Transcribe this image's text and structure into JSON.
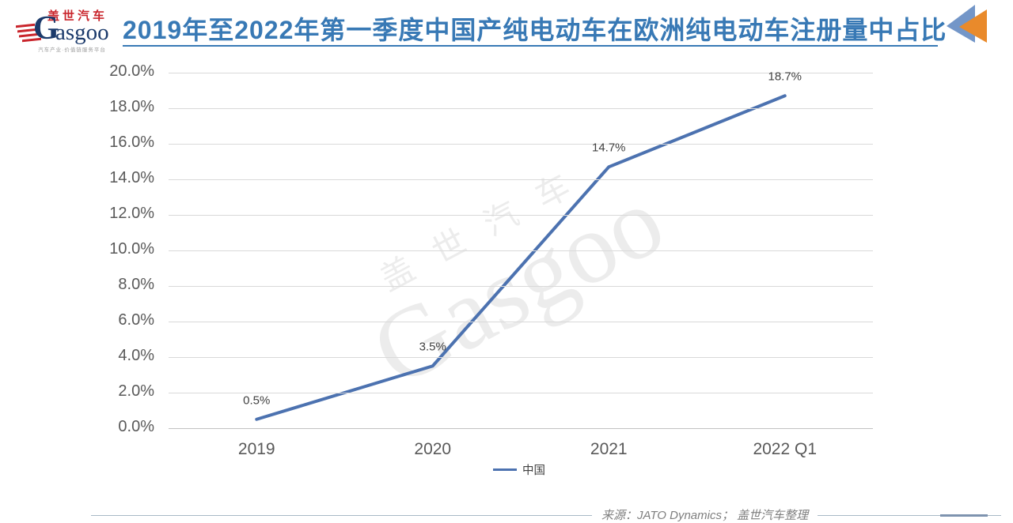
{
  "header": {
    "logo": {
      "brand_cn": "盖世汽车",
      "brand_en_g": "G",
      "brand_en_rest": "asgoo",
      "tagline": "汽车产业·价值链服务平台",
      "red": "#C9252C",
      "navy": "#1B3A6B"
    },
    "title": "2019年至2022年第一季度中国产纯电动车在欧洲纯电动车注册量中占比",
    "title_color": "#3879B5",
    "corner_icon": {
      "blue": "#7396C8",
      "orange": "#E98A2B"
    }
  },
  "chart_data": {
    "type": "line",
    "title": "2019年至2022年第一季度中国产纯电动车在欧洲纯电动车注册量中占比",
    "categories": [
      "2019",
      "2020",
      "2021",
      "2022 Q1"
    ],
    "series": [
      {
        "name": "中国",
        "color": "#4C72B0",
        "values": [
          0.5,
          3.5,
          14.7,
          18.7
        ]
      }
    ],
    "data_labels": [
      "0.5%",
      "3.5%",
      "14.7%",
      "18.7%"
    ],
    "y_ticks": [
      "20.0%",
      "18.0%",
      "16.0%",
      "14.0%",
      "12.0%",
      "10.0%",
      "8.0%",
      "6.0%",
      "4.0%",
      "2.0%",
      "0.0%"
    ],
    "ylim": [
      0,
      20
    ],
    "xlabel": "",
    "ylabel": "",
    "grid": true,
    "legend_position": "bottom"
  },
  "watermark": {
    "line1": "盖世汽车",
    "line2": "Gasgoo"
  },
  "footer": {
    "source": "来源：JATO Dynamics； 盖世汽车整理"
  }
}
